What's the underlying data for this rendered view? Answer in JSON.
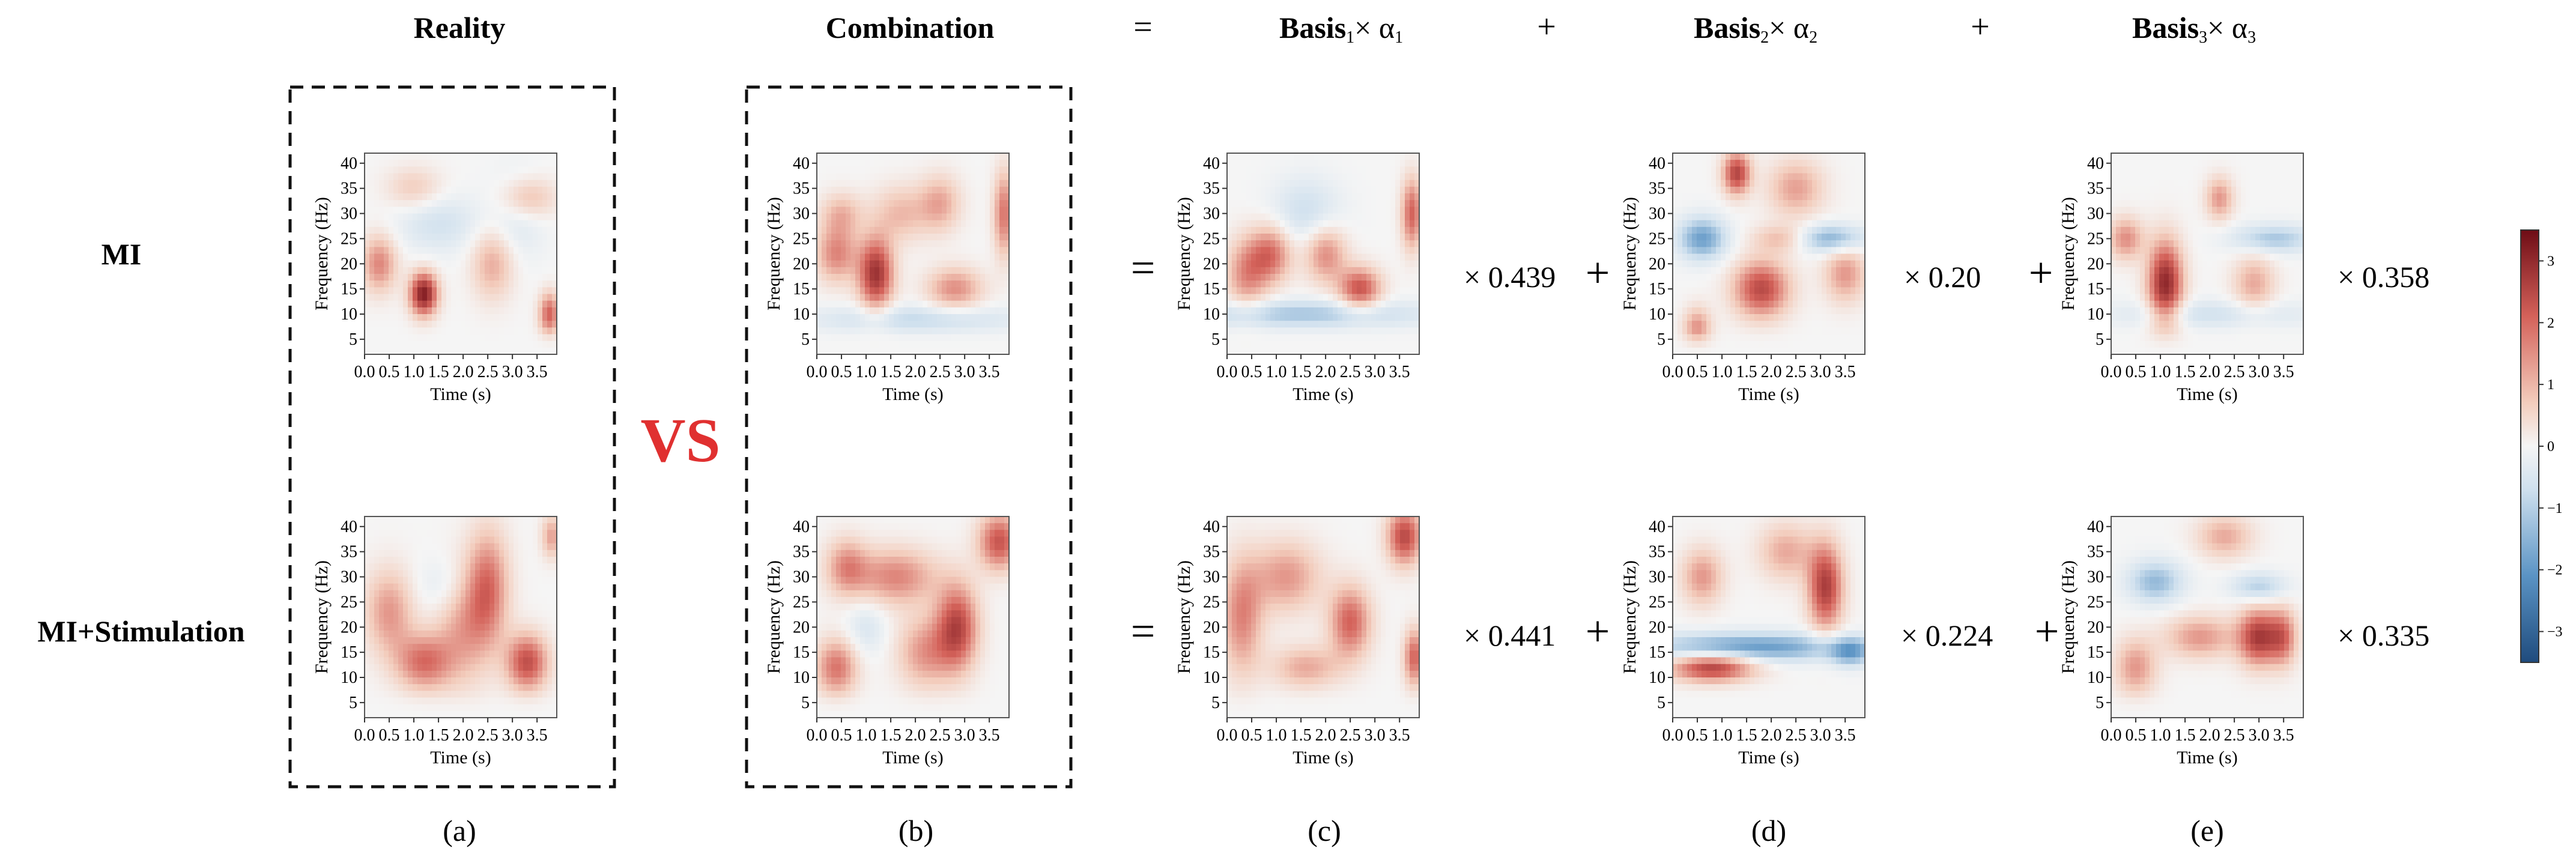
{
  "header": {
    "reality": "Reality",
    "combination": "Combination",
    "equals": "=",
    "basis_word": "Basis",
    "times_alpha": "× α",
    "plus": "+",
    "subscripts": [
      "1",
      "2",
      "3"
    ]
  },
  "row_labels": {
    "mi": "MI",
    "mi_stim": "MI+Stimulation"
  },
  "vs_label": "VS",
  "panel_letters": [
    "(a)",
    "(b)",
    "(c)",
    "(d)",
    "(e)"
  ],
  "operators": {
    "equals": "=",
    "plus": "+",
    "times": "×"
  },
  "colors": {
    "negative": "#2b5f99",
    "neutral": "#f2f2f2",
    "positive": "#8b1a1a",
    "vs": "#e03030"
  },
  "chart_data": {
    "type": "heatmap",
    "xlabel": "Time (s)",
    "ylabel": "Frequency (Hz)",
    "x_ticks": [
      "0.0",
      "0.5",
      "1.0",
      "1.5",
      "2.0",
      "2.5",
      "3.0",
      "3.5"
    ],
    "y_ticks": [
      "5",
      "10",
      "15",
      "20",
      "25",
      "30",
      "35",
      "40"
    ],
    "xlim": [
      0,
      3.9
    ],
    "ylim": [
      2,
      42
    ],
    "colorbar": {
      "min": -3.5,
      "max": 3.5,
      "ticks": [
        "3",
        "2",
        "1",
        "0",
        "−1",
        "−2",
        "−3"
      ]
    },
    "coefficients": {
      "mi": [
        "0.439",
        "0.20",
        "0.358"
      ],
      "mi_stim": [
        "0.441",
        "0.224",
        "0.335"
      ]
    },
    "panels": {
      "mi_reality": {
        "blobs": [
          [
            1.2,
            14,
            0.2,
            3,
            3.2
          ],
          [
            0.3,
            20,
            0.25,
            4,
            1.6
          ],
          [
            3.75,
            10,
            0.15,
            3,
            2.0
          ],
          [
            2.6,
            20,
            0.3,
            5,
            1.2
          ],
          [
            1.5,
            28,
            0.6,
            4,
            -0.7
          ],
          [
            3.1,
            30,
            0.4,
            6,
            -0.6
          ],
          [
            3.3,
            33,
            0.4,
            3,
            1.2
          ],
          [
            1.0,
            35,
            0.4,
            3,
            0.8
          ]
        ]
      },
      "mi_combination": {
        "blobs": [
          [
            1.2,
            18,
            0.25,
            5,
            2.8
          ],
          [
            0.4,
            22,
            0.3,
            4,
            1.6
          ],
          [
            2.8,
            15,
            0.4,
            3,
            1.5
          ],
          [
            2.0,
            9,
            1.5,
            2,
            -0.9
          ],
          [
            3.8,
            30,
            0.15,
            6,
            1.8
          ],
          [
            2.5,
            32,
            0.3,
            4,
            1.2
          ],
          [
            1.7,
            30,
            0.4,
            4,
            1.0
          ],
          [
            0.5,
            30,
            0.3,
            3,
            1.0
          ]
        ]
      },
      "mi_basis1": {
        "blobs": [
          [
            0.9,
            22,
            0.3,
            4,
            1.8
          ],
          [
            2.7,
            15,
            0.3,
            3,
            2.2
          ],
          [
            3.75,
            30,
            0.15,
            5,
            2.0
          ],
          [
            1.5,
            10,
            1.8,
            2,
            -1.2
          ],
          [
            1.6,
            30,
            0.5,
            5,
            -0.8
          ],
          [
            0.4,
            18,
            0.3,
            5,
            1.5
          ],
          [
            2.0,
            22,
            0.3,
            4,
            1.6
          ]
        ]
      },
      "mi_basis2": {
        "blobs": [
          [
            1.3,
            38,
            0.2,
            3,
            2.5
          ],
          [
            0.6,
            25,
            0.35,
            3,
            -1.8
          ],
          [
            3.2,
            25,
            0.5,
            2,
            -1.6
          ],
          [
            1.8,
            15,
            0.4,
            4,
            2.4
          ],
          [
            2.5,
            35,
            0.4,
            4,
            1.3
          ],
          [
            0.5,
            7,
            0.2,
            3,
            1.5
          ],
          [
            3.5,
            18,
            0.3,
            4,
            1.4
          ],
          [
            2.2,
            25,
            0.4,
            2,
            1.0
          ]
        ]
      },
      "mi_basis3": {
        "blobs": [
          [
            1.1,
            16,
            0.25,
            6,
            3.0
          ],
          [
            0.3,
            25,
            0.25,
            3,
            1.5
          ],
          [
            3.3,
            25,
            0.6,
            2,
            -1.2
          ],
          [
            2.2,
            33,
            0.2,
            3,
            1.4
          ],
          [
            2.9,
            16,
            0.3,
            4,
            1.2
          ],
          [
            2.0,
            10,
            1.5,
            2,
            -0.7
          ]
        ]
      },
      "mis_reality": {
        "blobs": [
          [
            1.2,
            13,
            0.4,
            4,
            1.8
          ],
          [
            2.5,
            28,
            0.3,
            8,
            1.8
          ],
          [
            3.3,
            13,
            0.3,
            4,
            2.3
          ],
          [
            0.5,
            23,
            0.35,
            6,
            1.4
          ],
          [
            1.6,
            28,
            0.4,
            4,
            -0.5
          ],
          [
            2.0,
            20,
            0.4,
            8,
            1.2
          ],
          [
            3.8,
            38,
            0.15,
            3,
            1.3
          ]
        ]
      },
      "mis_combination": {
        "blobs": [
          [
            2.85,
            20,
            0.3,
            6,
            2.4
          ],
          [
            0.4,
            12,
            0.3,
            4,
            1.8
          ],
          [
            3.7,
            37,
            0.3,
            4,
            2.2
          ],
          [
            1.6,
            30,
            0.6,
            4,
            1.6
          ],
          [
            2.2,
            15,
            0.4,
            5,
            1.4
          ],
          [
            1.0,
            20,
            0.3,
            4,
            -0.6
          ],
          [
            0.6,
            32,
            0.3,
            4,
            1.4
          ]
        ]
      },
      "mis_basis1": {
        "blobs": [
          [
            3.6,
            38,
            0.25,
            4,
            2.4
          ],
          [
            2.5,
            21,
            0.3,
            5,
            2.0
          ],
          [
            3.8,
            14,
            0.15,
            4,
            2.0
          ],
          [
            0.3,
            22,
            0.3,
            8,
            1.6
          ],
          [
            1.2,
            30,
            0.5,
            5,
            1.4
          ],
          [
            1.6,
            12,
            0.5,
            3,
            1.2
          ]
        ]
      },
      "mis_basis2": {
        "blobs": [
          [
            0.8,
            12,
            0.6,
            2,
            2.6
          ],
          [
            1.6,
            16,
            1.5,
            2,
            -1.9
          ],
          [
            3.1,
            28,
            0.25,
            6,
            2.6
          ],
          [
            0.6,
            30,
            0.3,
            4,
            1.4
          ],
          [
            2.3,
            35,
            0.4,
            4,
            1.2
          ],
          [
            3.6,
            15,
            0.3,
            2,
            -1.4
          ]
        ]
      },
      "mis_basis3": {
        "blobs": [
          [
            3.0,
            18,
            0.3,
            4,
            2.6
          ],
          [
            0.9,
            29,
            0.4,
            3,
            -1.4
          ],
          [
            3.0,
            28,
            0.4,
            2,
            -1.1
          ],
          [
            1.8,
            18,
            0.5,
            3,
            1.4
          ],
          [
            0.5,
            12,
            0.3,
            4,
            1.4
          ],
          [
            2.3,
            38,
            0.4,
            3,
            1.2
          ],
          [
            3.5,
            18,
            0.2,
            4,
            1.6
          ]
        ]
      }
    }
  }
}
